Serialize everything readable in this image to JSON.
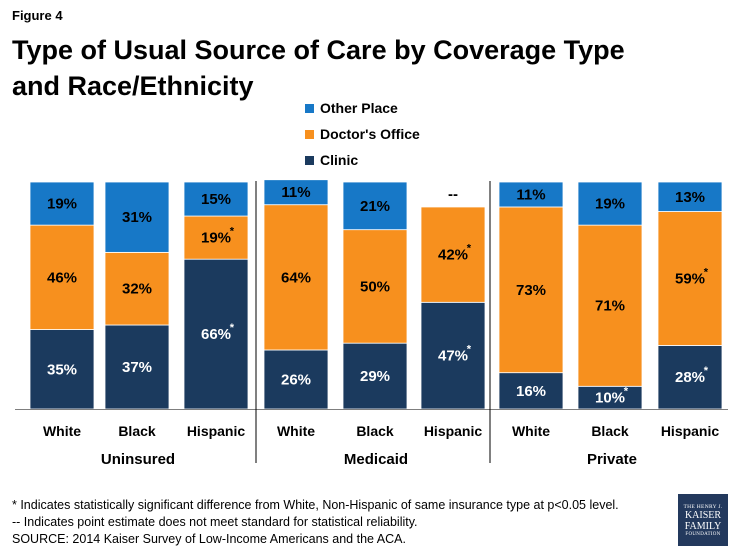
{
  "figure_label": "Figure 4",
  "title": "Type of Usual Source of Care by Coverage Type and Race/Ethnicity",
  "colors": {
    "other": "#1778c7",
    "doctor": "#f7901e",
    "clinic": "#1b3a5e",
    "axis": "#7f7f7f"
  },
  "chart_data": {
    "type": "bar",
    "stacked": true,
    "title": "Type of Usual Source of Care by Coverage Type and Race/Ethnicity",
    "legend": [
      "Other Place",
      "Doctor's Office",
      "Clinic"
    ],
    "legend_position": "top",
    "groups": [
      "Uninsured",
      "Medicaid",
      "Private"
    ],
    "categories": [
      "White",
      "Black",
      "Hispanic",
      "White",
      "Black",
      "Hispanic",
      "White",
      "Black",
      "Hispanic"
    ],
    "series": [
      {
        "name": "Clinic",
        "values": [
          35,
          37,
          66,
          26,
          29,
          47,
          16,
          10,
          28
        ],
        "labels": [
          "35%",
          "37%",
          "66%",
          "26%",
          "29%",
          "47%",
          "16%",
          "10%",
          "28%"
        ],
        "significant": [
          false,
          false,
          true,
          false,
          false,
          true,
          false,
          true,
          true
        ]
      },
      {
        "name": "Doctor's Office",
        "values": [
          46,
          32,
          19,
          64,
          50,
          42,
          73,
          71,
          59
        ],
        "labels": [
          "46%",
          "32%",
          "19%",
          "64%",
          "50%",
          "42%",
          "73%",
          "71%",
          "59%"
        ],
        "significant": [
          false,
          false,
          true,
          false,
          false,
          true,
          false,
          false,
          true
        ]
      },
      {
        "name": "Other Place",
        "values": [
          19,
          31,
          15,
          11,
          21,
          null,
          11,
          19,
          13
        ],
        "labels": [
          "19%",
          "31%",
          "15%",
          "11%",
          "21%",
          "--",
          "11%",
          "19%",
          "13%"
        ],
        "significant": [
          false,
          false,
          false,
          false,
          false,
          false,
          false,
          false,
          false
        ]
      }
    ],
    "significance_marker": "*",
    "ylim": [
      0,
      100
    ]
  },
  "notes": [
    "* Indicates statistically significant difference from White, Non-Hispanic of same insurance type at p<0.05 level.",
    "-- Indicates point estimate does not meet standard for statistical reliability.",
    "SOURCE: 2014 Kaiser Survey of Low-Income Americans and the ACA."
  ],
  "logo": {
    "line1": "THE HENRY J.",
    "line2": "KAISER",
    "line3": "FAMILY",
    "line4": "FOUNDATION"
  }
}
